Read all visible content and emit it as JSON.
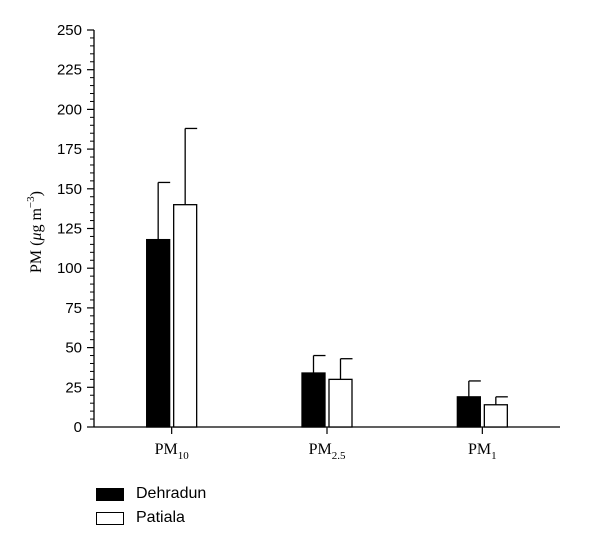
{
  "chart_data": {
    "type": "bar",
    "categories": [
      {
        "base": "PM",
        "sub": "10"
      },
      {
        "base": "PM",
        "sub": "2.5"
      },
      {
        "base": "PM",
        "sub": "1"
      }
    ],
    "series": [
      {
        "name": "Dehradun",
        "color": "#000000",
        "values": [
          118,
          34,
          19
        ],
        "errors": [
          36,
          11,
          10
        ]
      },
      {
        "name": "Patiala",
        "color": "#ffffff",
        "values": [
          140,
          30,
          14
        ],
        "errors": [
          48,
          13,
          5
        ]
      }
    ],
    "ylabel": {
      "main": "PM (",
      "mu": "μ",
      "unit": "g m",
      "exp": "−3",
      "close": ")"
    },
    "ylim": [
      0,
      250
    ],
    "yticks": [
      "0",
      "25",
      "50",
      "75",
      "100",
      "125",
      "150",
      "175",
      "200",
      "225",
      "250"
    ],
    "ytick_values": [
      0,
      25,
      50,
      75,
      100,
      125,
      150,
      175,
      200,
      225,
      250
    ],
    "grid": false,
    "legend_position": "bottom-left"
  }
}
